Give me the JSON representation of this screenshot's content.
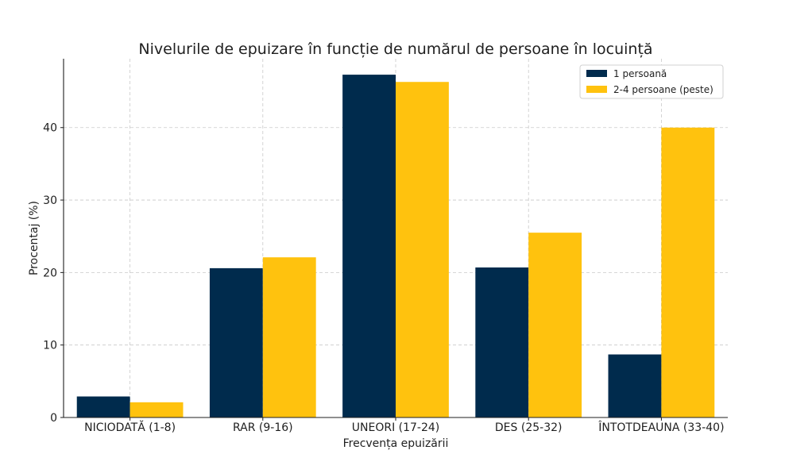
{
  "chart_data": {
    "type": "bar",
    "title": "Nivelurile de epuizare în funcție de numărul de persoane în locuință",
    "xlabel": "Frecvența epuizării",
    "ylabel": "Procentaj (%)",
    "categories": [
      "NICIODATĂ (1-8)",
      "RAR (9-16)",
      "UNEORI (17-24)",
      "DES (25-32)",
      "ÎNTOTDEAUNA (33-40)"
    ],
    "series": [
      {
        "name": "1 persoană",
        "color": "#002b4d",
        "values": [
          2.9,
          20.6,
          47.3,
          20.7,
          8.7
        ]
      },
      {
        "name": "2-4 persoane (peste)",
        "color": "#ffc20e",
        "values": [
          2.1,
          22.1,
          46.3,
          25.5,
          40.0
        ]
      }
    ],
    "ylim": [
      0,
      49.5
    ],
    "yticks": [
      0,
      10,
      20,
      30,
      40
    ],
    "grid": true,
    "legend_position": "top-right"
  }
}
